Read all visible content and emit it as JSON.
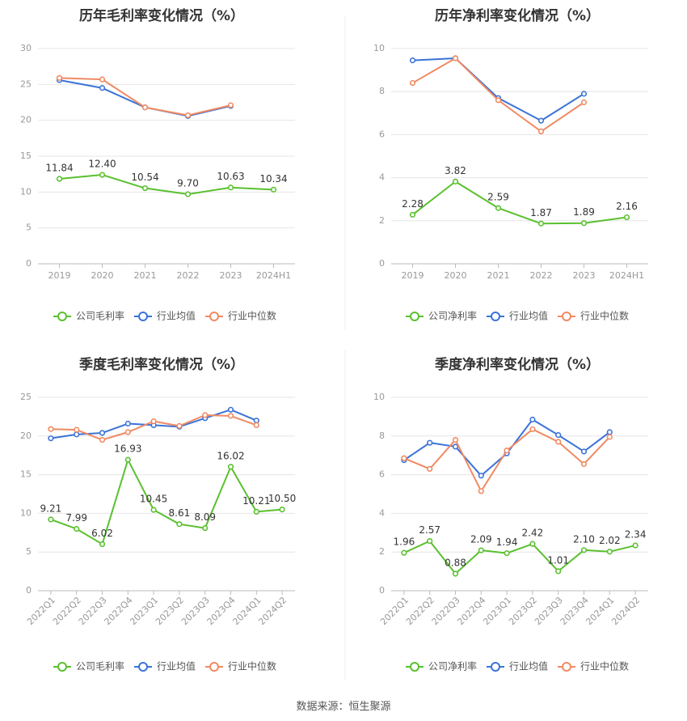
{
  "source": "数据来源：恒生聚源",
  "colors": {
    "company": "#5ac02f",
    "avg": "#3b73d8",
    "median": "#f08a63",
    "grid": "#e6e6e6",
    "axis": "#bbbbbb",
    "divider": "#eeeeee"
  },
  "chart_data": [
    {
      "id": "annual-gross",
      "type": "line",
      "title": "历年毛利率变化情况（%）",
      "categories": [
        "2019",
        "2020",
        "2021",
        "2022",
        "2023",
        "2024H1"
      ],
      "ylim": [
        0,
        30
      ],
      "yticks": [
        0,
        5,
        10,
        15,
        20,
        25,
        30
      ],
      "series": [
        {
          "name": "公司毛利率",
          "key": "company",
          "values": [
            11.84,
            12.4,
            10.54,
            9.7,
            10.63,
            10.34
          ],
          "labels": [
            "11.84",
            "12.40",
            "10.54",
            "9.70",
            "10.63",
            "10.34"
          ]
        },
        {
          "name": "行业均值",
          "key": "avg",
          "values": [
            25.6,
            24.5,
            21.8,
            20.6,
            22.0,
            null
          ]
        },
        {
          "name": "行业中位数",
          "key": "median",
          "values": [
            25.9,
            25.7,
            21.8,
            20.7,
            22.1,
            null
          ]
        }
      ]
    },
    {
      "id": "annual-net",
      "type": "line",
      "title": "历年净利率变化情况（%）",
      "categories": [
        "2019",
        "2020",
        "2021",
        "2022",
        "2023",
        "2024H1"
      ],
      "ylim": [
        0,
        10
      ],
      "yticks": [
        0,
        2,
        4,
        6,
        8,
        10
      ],
      "series": [
        {
          "name": "公司净利率",
          "key": "company",
          "values": [
            2.28,
            3.82,
            2.59,
            1.87,
            1.89,
            2.16
          ],
          "labels": [
            "2.28",
            "3.82",
            "2.59",
            "1.87",
            "1.89",
            "2.16"
          ]
        },
        {
          "name": "行业均值",
          "key": "avg",
          "values": [
            9.45,
            9.55,
            7.7,
            6.65,
            7.9,
            null
          ]
        },
        {
          "name": "行业中位数",
          "key": "median",
          "values": [
            8.4,
            9.55,
            7.6,
            6.15,
            7.5,
            null
          ]
        }
      ]
    },
    {
      "id": "quarterly-gross",
      "type": "line",
      "title": "季度毛利率变化情况（%）",
      "categories": [
        "2022Q1",
        "2022Q2",
        "2022Q3",
        "2022Q4",
        "2023Q1",
        "2023Q2",
        "2023Q3",
        "2023Q4",
        "2024Q1",
        "2024Q2"
      ],
      "ylim": [
        0,
        25
      ],
      "yticks": [
        0,
        5,
        10,
        15,
        20,
        25
      ],
      "series": [
        {
          "name": "公司毛利率",
          "key": "company",
          "values": [
            9.21,
            7.99,
            6.02,
            16.93,
            10.45,
            8.61,
            8.09,
            16.02,
            10.21,
            10.5
          ],
          "labels": [
            "9.21",
            "7.99",
            "6.02",
            "16.93",
            "10.45",
            "8.61",
            "8.09",
            "16.02",
            "10.21",
            "10.50"
          ]
        },
        {
          "name": "行业均值",
          "key": "avg",
          "values": [
            19.7,
            20.2,
            20.4,
            21.6,
            21.4,
            21.2,
            22.3,
            23.4,
            22.0,
            null
          ]
        },
        {
          "name": "行业中位数",
          "key": "median",
          "values": [
            20.9,
            20.8,
            19.5,
            20.5,
            21.9,
            21.3,
            22.7,
            22.6,
            21.4,
            null
          ]
        }
      ]
    },
    {
      "id": "quarterly-net",
      "type": "line",
      "title": "季度净利率变化情况（%）",
      "categories": [
        "2022Q1",
        "2022Q2",
        "2022Q3",
        "2022Q4",
        "2023Q1",
        "2023Q2",
        "2023Q3",
        "2023Q4",
        "2024Q1",
        "2024Q2"
      ],
      "ylim": [
        0,
        10
      ],
      "yticks": [
        0,
        2,
        4,
        6,
        8,
        10
      ],
      "series": [
        {
          "name": "公司净利率",
          "key": "company",
          "values": [
            1.96,
            2.57,
            0.88,
            2.09,
            1.94,
            2.42,
            1.01,
            2.1,
            2.02,
            2.34
          ],
          "labels": [
            "1.96",
            "2.57",
            "0.88",
            "2.09",
            "1.94",
            "2.42",
            "1.01",
            "2.10",
            "2.02",
            "2.34"
          ]
        },
        {
          "name": "行业均值",
          "key": "avg",
          "values": [
            6.75,
            7.65,
            7.45,
            5.95,
            7.1,
            8.85,
            8.05,
            7.2,
            8.2,
            null
          ]
        },
        {
          "name": "行业中位数",
          "key": "median",
          "values": [
            6.85,
            6.3,
            7.8,
            5.15,
            7.25,
            8.35,
            7.7,
            6.55,
            7.95,
            null
          ]
        }
      ]
    }
  ]
}
